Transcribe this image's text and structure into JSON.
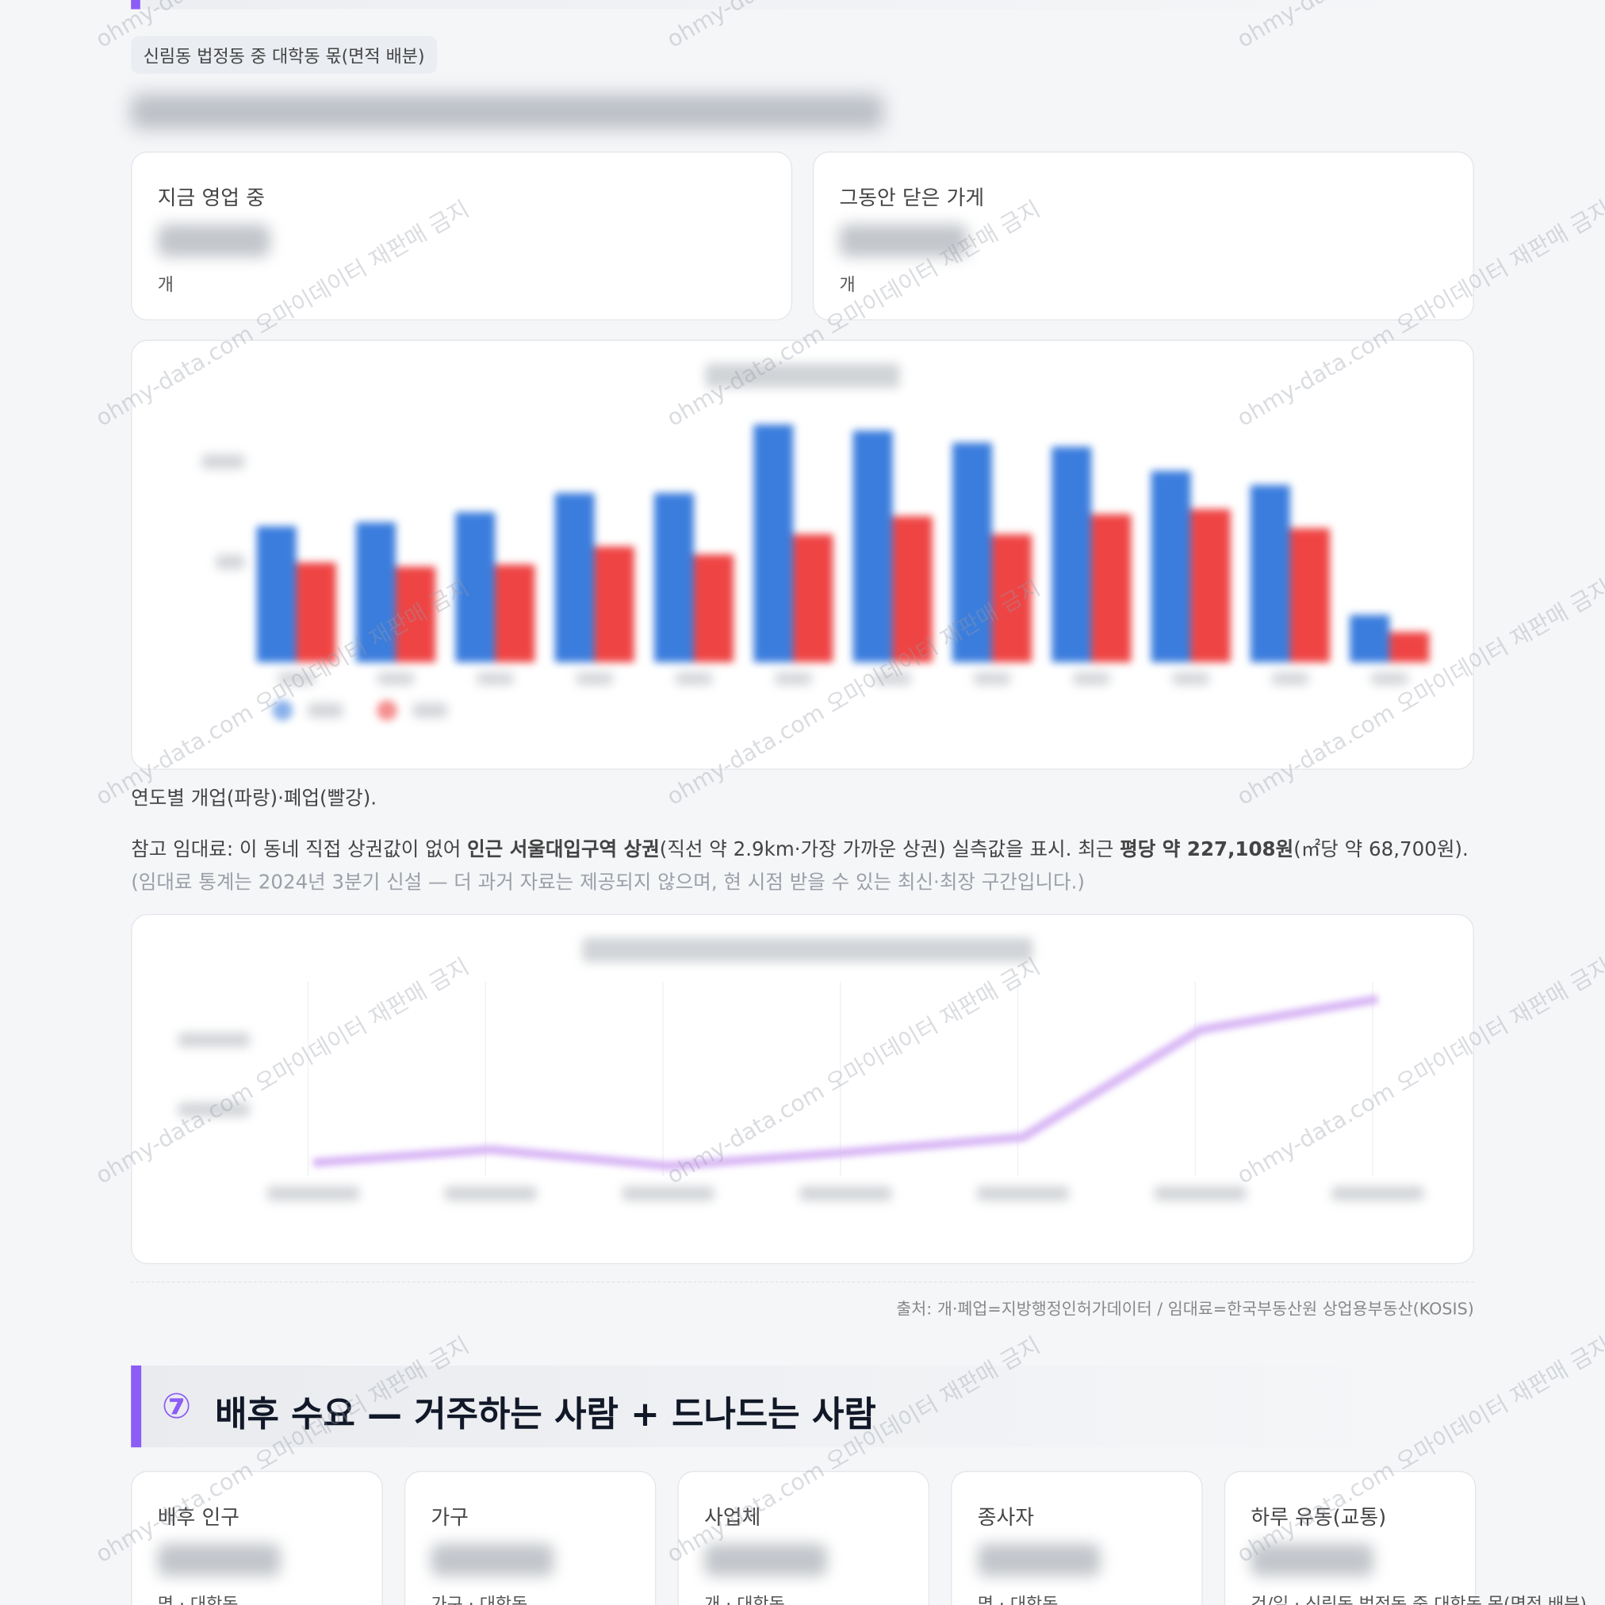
{
  "watermark": "ohmy-data.com 오마이데이터 재판매 금지",
  "tag": "신림동 법정동 중 대학동 몫(면적 배분)",
  "stats": [
    {
      "label": "지금 영업 중",
      "unit": "개"
    },
    {
      "label": "그동안 닫은 가게",
      "unit": "개"
    }
  ],
  "caption": "연도별 개업(파랑)·폐업(빨강).",
  "rent_note": {
    "p1": "참고 임대료: 이 동네 직접 상권값이 없어 ",
    "b1": "인근 서울대입구역 상권",
    "p2": "(직선 약 2.9km·가장 가까운 상권) 실측값을 표시. 최근 ",
    "b2": "평당 약 227,108원",
    "p3": "(㎡당 약 68,700원). ",
    "muted": "(임대료 통계는 2024년 3분기 신설 — 더 과거 자료는 제공되지 않으며, 현 시점 받을 수 있는 최신·최장 구간입니다.)"
  },
  "source": "출처: 개·폐업=지방행정인허가데이터 / 임대료=한국부동산원 상업용부동산(KOSIS)",
  "section": {
    "number": "⑦",
    "title": "배후 수요 — 거주하는 사람 + 드나드는 사람"
  },
  "demand_cards": [
    {
      "label": "배후 인구",
      "unit": "명 · 대학동"
    },
    {
      "label": "가구",
      "unit": "가구 · 대학동"
    },
    {
      "label": "사업체",
      "unit": "개 · 대학동"
    },
    {
      "label": "종사자",
      "unit": "명 · 대학동"
    },
    {
      "label": "하루 유동(교통)",
      "unit": "건/일 · 신림동 법정동 중 대학동 몫(면적 배분)"
    }
  ],
  "chart_data": [
    {
      "type": "bar",
      "categories": [
        null,
        null,
        null,
        null,
        null,
        null,
        null,
        null,
        null,
        null,
        null,
        null
      ],
      "series": [
        {
          "color": "#3b7ddd",
          "values": [
            675,
            695,
            745,
            840,
            840,
            1180,
            1150,
            1090,
            1070,
            950,
            880,
            235
          ]
        },
        {
          "color": "#ef4444",
          "values": [
            495,
            475,
            485,
            575,
            535,
            635,
            725,
            635,
            735,
            760,
            665,
            150
          ]
        }
      ],
      "ylim": [
        0,
        1250
      ]
    },
    {
      "type": "line",
      "categories": [
        null,
        null,
        null,
        null,
        null,
        null,
        null
      ],
      "series": [
        {
          "color": "#d9b8f5",
          "values": [
            7.9,
            14.7,
            6.3,
            13.2,
            21.1,
            76.3,
            92.1
          ]
        }
      ],
      "ylim": [
        0,
        100
      ]
    }
  ]
}
